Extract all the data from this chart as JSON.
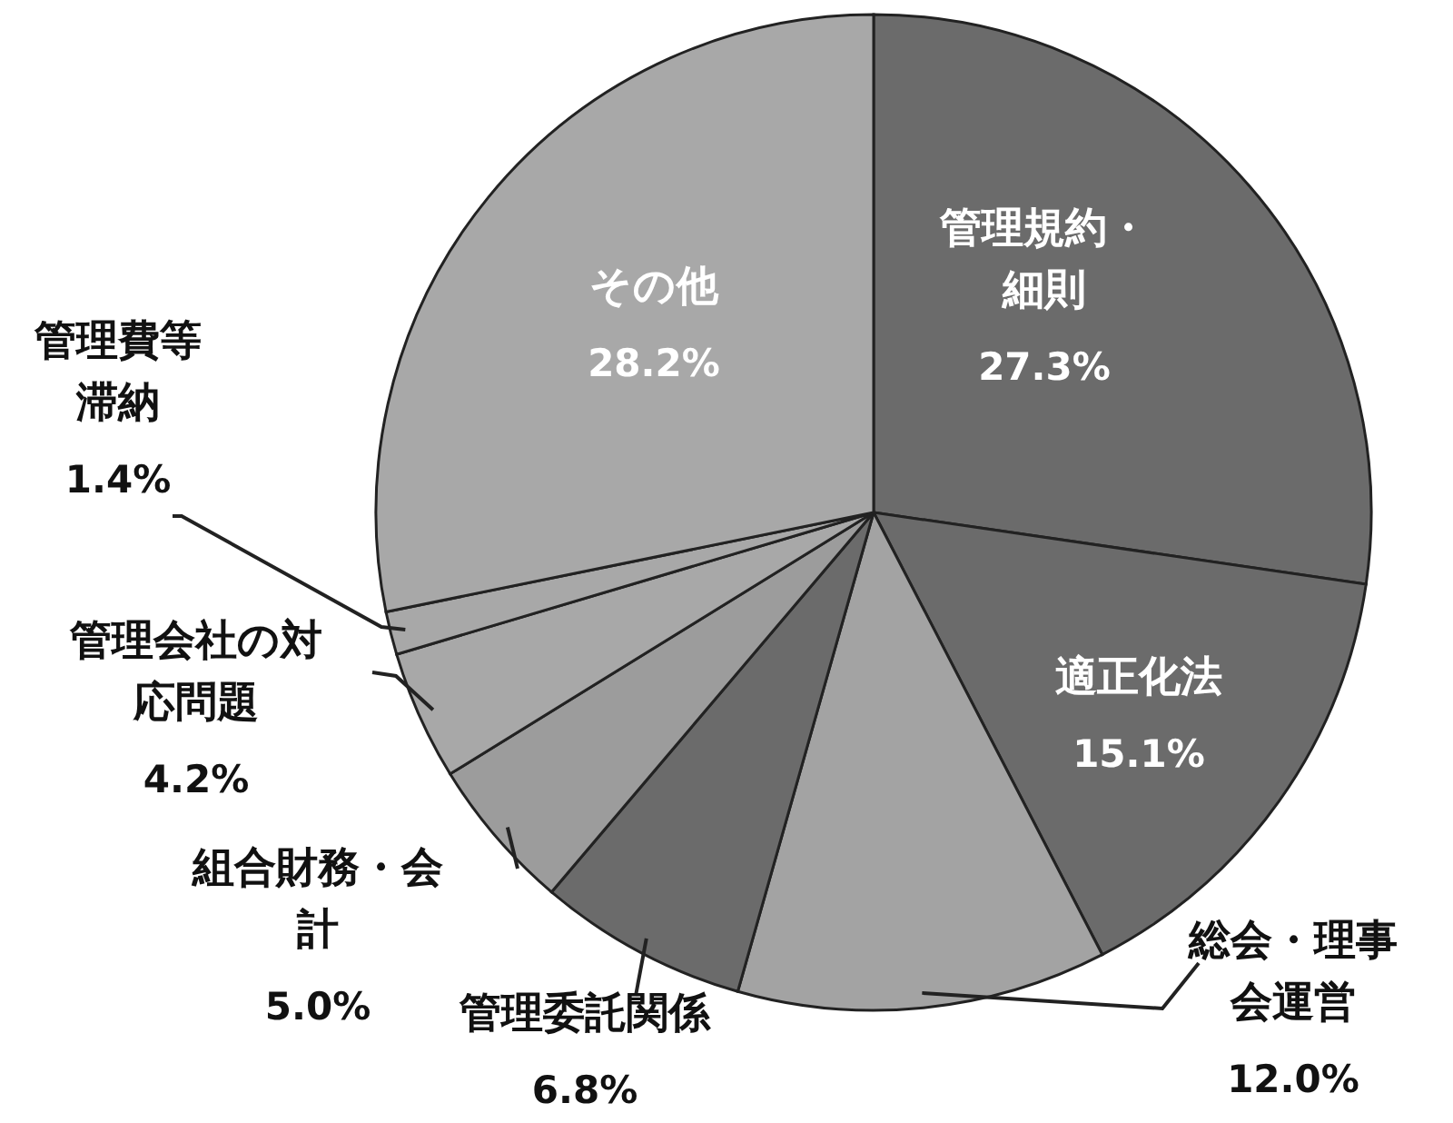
{
  "chart_data": {
    "type": "pie",
    "categories": [
      "管理規約・細則",
      "適正化法",
      "総会・理事会運営",
      "管理委託関係",
      "組合財務・会計",
      "管理会社の対応問題",
      "管理費等滞納",
      "その他"
    ],
    "values": [
      27.3,
      15.1,
      12.0,
      6.8,
      5.0,
      4.2,
      1.4,
      28.2
    ],
    "value_labels": [
      "27.3%",
      "15.1%",
      "12.0%",
      "6.8%",
      "5.0%",
      "4.2%",
      "1.4%",
      "28.2%"
    ],
    "colors": [
      "#6b6b6b",
      "#6b6b6b",
      "#a3a3a3",
      "#6b6b6b",
      "#9c9c9c",
      "#a8a8a8",
      "#a8a8a8",
      "#a8a8a8"
    ]
  }
}
